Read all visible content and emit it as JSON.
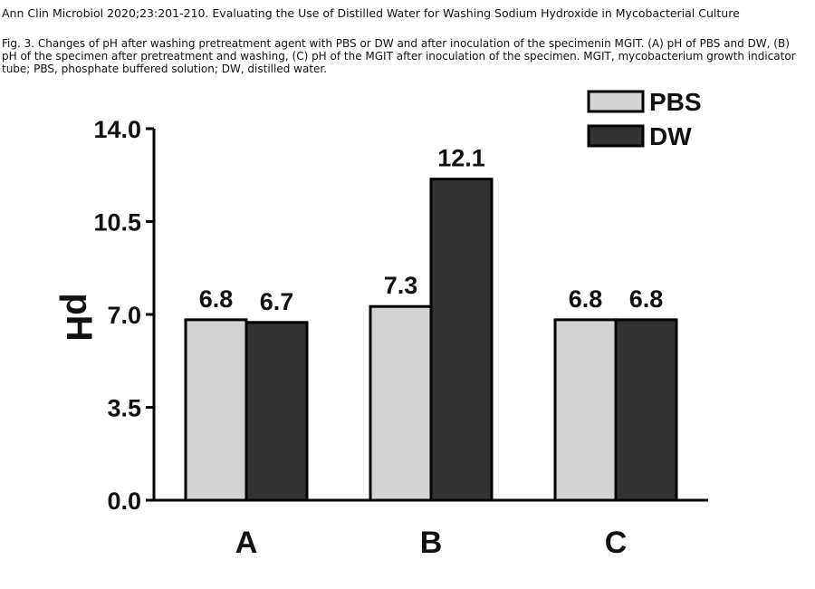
{
  "header": {
    "citation": "Ann Clin Microbiol 2020;23:201-210. Evaluating the Use of Distilled Water for Washing Sodium Hydroxide in Mycobacterial Culture",
    "caption": "Fig. 3. Changes of pH after washing pretreatment agent with PBS or DW and after inoculation of the specimenin MGIT. (A) pH of PBS and DW, (B) pH of the specimen after pretreatment and washing, (C) pH of the MGIT after inoculation of the specimen. MGIT, mycobacterium growth indicator tube; PBS, phosphate buffered solution; DW, distilled water."
  },
  "chart_data": {
    "type": "bar",
    "categories": [
      "A",
      "B",
      "C"
    ],
    "series": [
      {
        "name": "PBS",
        "values": [
          6.8,
          7.3,
          6.8
        ],
        "labels": [
          "6.8",
          "7.3",
          "6.8"
        ],
        "color": "#d3d3d3"
      },
      {
        "name": "DW",
        "values": [
          6.7,
          12.1,
          6.8
        ],
        "labels": [
          "6.7",
          "12.1",
          "6.8"
        ],
        "color": "#333333"
      }
    ],
    "title": "",
    "xlabel": "",
    "ylabel": "pH",
    "ylim": [
      0,
      14
    ],
    "yticks": [
      0,
      3.5,
      7,
      10.5,
      14
    ],
    "ytick_labels": [
      "0.0",
      "3.5",
      "7.0",
      "10.5",
      "14.0"
    ],
    "grid": false,
    "legend_position": "top-right"
  }
}
